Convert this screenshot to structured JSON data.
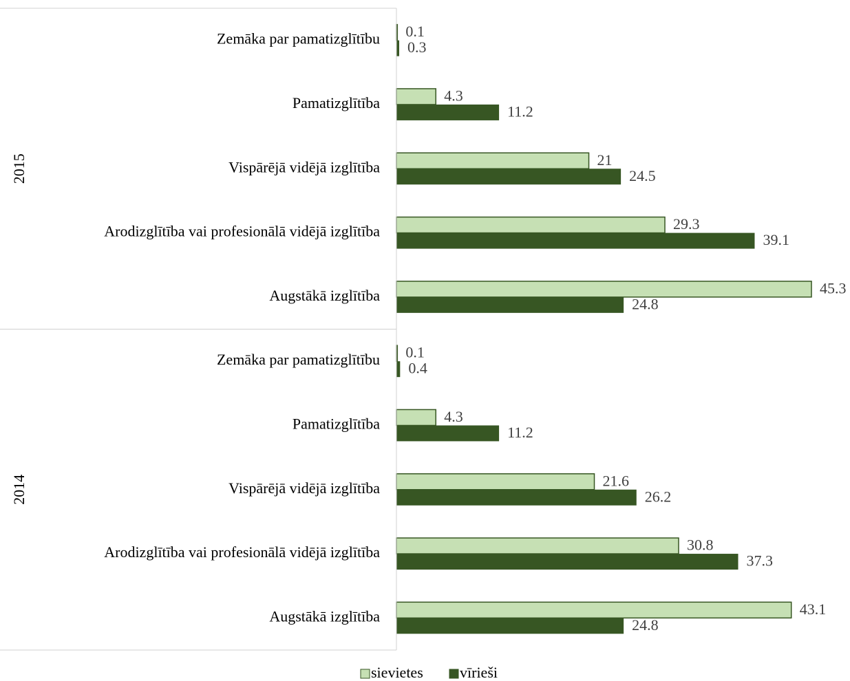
{
  "chart_data": {
    "type": "bar",
    "groups": [
      "2015",
      "2014"
    ],
    "categories": [
      [
        "Zemāka par pamatizglītību",
        "Pamatizglītība",
        "Vispārējā vidējā izglītība",
        "Arodizglītība vai profesionālā vidējā izglītība",
        "Augstākā izglītība"
      ],
      [
        "Zemāka par pamatizglītību",
        "Pamatizglītība",
        "Vispārējā vidējā izglītība",
        "Arodizglītība vai profesionālā vidējā izglītība",
        "Augstākā izglītība"
      ]
    ],
    "series": [
      {
        "name": "sievietes",
        "color": "#c6e0b4",
        "values": [
          [
            0.1,
            4.3,
            21,
            29.3,
            45.3
          ],
          [
            0.1,
            4.3,
            21.6,
            30.8,
            43.1
          ]
        ]
      },
      {
        "name": "vīrieši",
        "color": "#375623",
        "values": [
          [
            0.3,
            11.2,
            24.5,
            39.1,
            24.8
          ],
          [
            0.4,
            11.2,
            26.2,
            37.3,
            24.8
          ]
        ]
      }
    ]
  }
}
